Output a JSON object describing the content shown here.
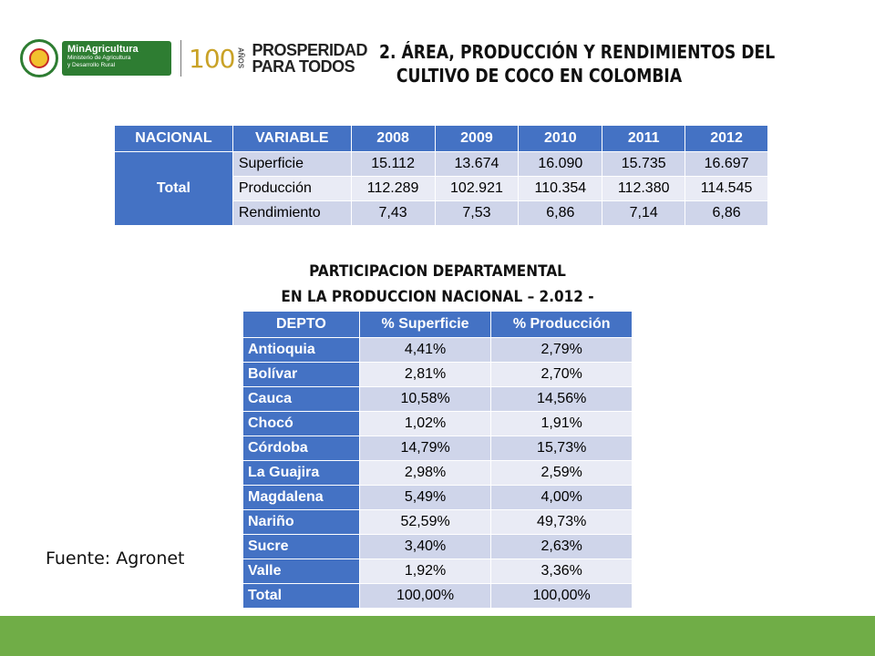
{
  "logos": {
    "min_title": "MinAgricultura",
    "min_sub1": "Ministerio de Agricultura",
    "min_sub2": "y Desarrollo Rural",
    "cien": "100",
    "anos": "AÑOS",
    "prosperidad_1": "PROSPERIDAD",
    "prosperidad_2": "PARA TODOS"
  },
  "title": {
    "line1": "2. ÁREA, PRODUCCIÓN Y RENDIMIENTOS DEL",
    "line2": "CULTIVO DE COCO EN COLOMBIA"
  },
  "national_table": {
    "headers": [
      "NACIONAL",
      "VARIABLE",
      "2008",
      "2009",
      "2010",
      "2011",
      "2012"
    ],
    "group_label": "Total",
    "rows": [
      {
        "variable": "Superficie",
        "values": [
          "15.112",
          "13.674",
          "16.090",
          "15.735",
          "16.697"
        ]
      },
      {
        "variable": "Producción",
        "values": [
          "112.289",
          "102.921",
          "110.354",
          "112.380",
          "114.545"
        ]
      },
      {
        "variable": "Rendimiento",
        "values": [
          "7,43",
          "7,53",
          "6,86",
          "7,14",
          "6,86"
        ]
      }
    ]
  },
  "subtitle": {
    "line1": "PARTICIPACION DEPARTAMENTAL",
    "line2": "EN LA PRODUCCION NACIONAL – 2.012 -"
  },
  "dept_table": {
    "headers": [
      "DEPTO",
      "% Superficie",
      "% Producción"
    ],
    "rows": [
      {
        "depto": "Antioquia",
        "superficie": "4,41%",
        "produccion": "2,79%"
      },
      {
        "depto": "Bolívar",
        "superficie": "2,81%",
        "produccion": "2,70%"
      },
      {
        "depto": "Cauca",
        "superficie": "10,58%",
        "produccion": "14,56%"
      },
      {
        "depto": "Chocó",
        "superficie": "1,02%",
        "produccion": "1,91%"
      },
      {
        "depto": "Córdoba",
        "superficie": "14,79%",
        "produccion": "15,73%"
      },
      {
        "depto": "La Guajira",
        "superficie": "2,98%",
        "produccion": "2,59%"
      },
      {
        "depto": "Magdalena",
        "superficie": "5,49%",
        "produccion": "4,00%"
      },
      {
        "depto": "Nariño",
        "superficie": "52,59%",
        "produccion": "49,73%"
      },
      {
        "depto": "Sucre",
        "superficie": "3,40%",
        "produccion": "2,63%"
      },
      {
        "depto": "Valle",
        "superficie": "1,92%",
        "produccion": "3,36%"
      },
      {
        "depto": "Total",
        "superficie": "100,00%",
        "produccion": "100,00%"
      }
    ]
  },
  "source": "Fuente: Agronet",
  "colors": {
    "header_blue": "#4472c4",
    "row_light": "#cfd5ea",
    "row_lighter": "#e9ebf5",
    "footer_green": "#70ad47"
  }
}
